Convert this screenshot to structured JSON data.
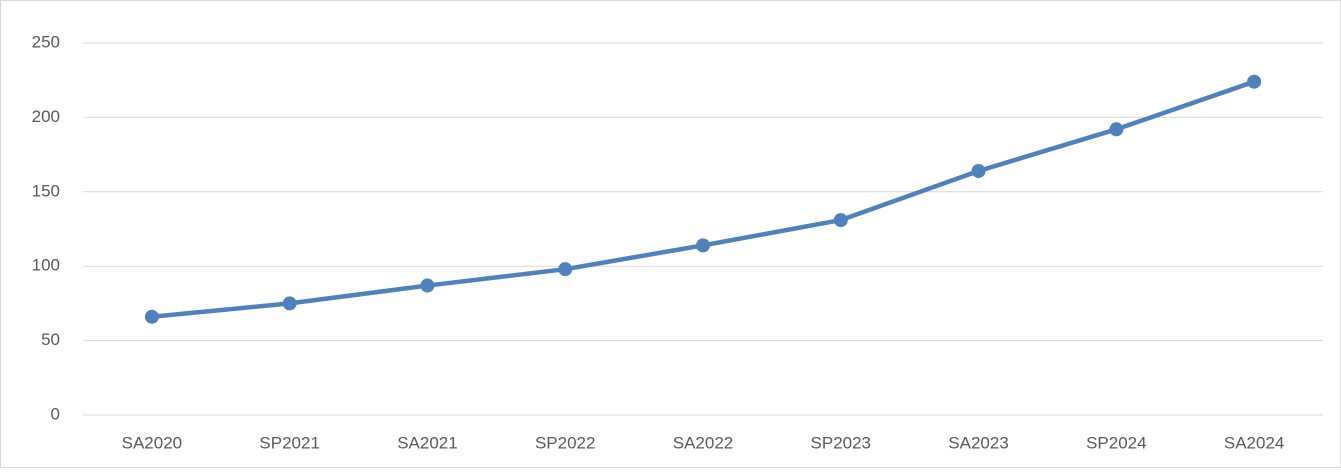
{
  "chart_data": {
    "type": "line",
    "categories": [
      "SA2020",
      "SP2021",
      "SA2021",
      "SP2022",
      "SA2022",
      "SP2023",
      "SA2023",
      "SP2024",
      "SA2024"
    ],
    "values": [
      66,
      75,
      87,
      98,
      114,
      131,
      164,
      192,
      224
    ],
    "color": "#4f81bd",
    "ylim": [
      0,
      250
    ],
    "yticks": [
      0,
      50,
      100,
      150,
      200,
      250
    ],
    "grid": true
  }
}
